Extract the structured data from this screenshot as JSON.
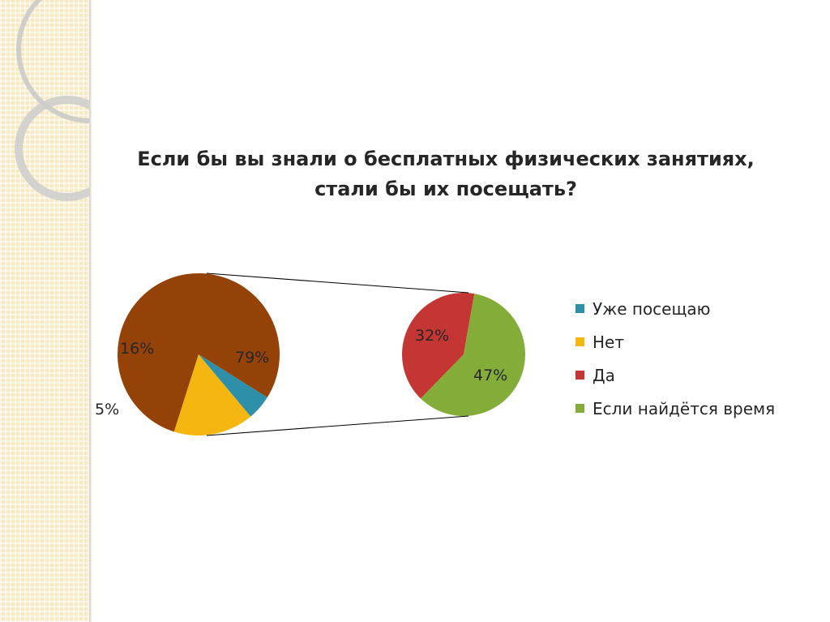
{
  "chart_data": {
    "type": "pie",
    "title": "Если бы вы знали о бесплатных физических занятиях, стали бы их посещать?",
    "main_pie": {
      "slices": [
        {
          "label": "Уже посещаю",
          "value": 5,
          "display": "5%",
          "color": "#2e8fa8"
        },
        {
          "label": "Нет",
          "value": 16,
          "display": "16%",
          "color": "#f5b70f"
        },
        {
          "label": "",
          "value": 79,
          "display": "79%",
          "color": "#954208"
        }
      ]
    },
    "sub_pie": {
      "slices": [
        {
          "label": "Да",
          "value": 32,
          "display": "32%",
          "color": "#c43633"
        },
        {
          "label": "Если найдётся время",
          "value": 47,
          "display": "47%",
          "color": "#84ac38"
        }
      ]
    },
    "legend": [
      {
        "label": "Уже посещаю",
        "color": "#2e8fa8"
      },
      {
        "label": "Нет",
        "color": "#f5b70f"
      },
      {
        "label": "Да",
        "color": "#c43633"
      },
      {
        "label": "Если найдётся время",
        "color": "#84ac38"
      }
    ],
    "legend_position": "right"
  }
}
